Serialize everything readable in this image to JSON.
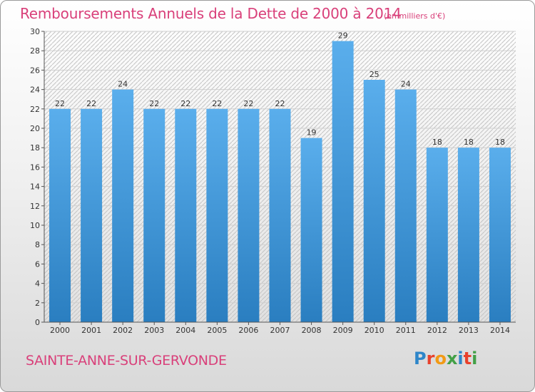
{
  "header": {
    "title": "Remboursements Annuels de la Dette de 2000 à 2014",
    "subtitle": "(en milliers d'€)"
  },
  "footer": {
    "commune": "SAINTE-ANNE-SUR-GERVONDE",
    "logo_letters": [
      "P",
      "r",
      "o",
      "x",
      "i",
      "t",
      "i"
    ],
    "logo_colors": [
      "#2e86c9",
      "#e8412c",
      "#f29a16",
      "#43a047",
      "#2e86c9",
      "#e8412c",
      "#43a047"
    ]
  },
  "colors": {
    "accent": "#d9407a",
    "bar_top": "#5aaeec",
    "bar_bottom": "#2a7ec0",
    "grid": "#cfcfcf"
  },
  "chart_data": {
    "type": "bar",
    "title": "Remboursements Annuels de la Dette de 2000 à 2014",
    "ylabel": "en milliers d'€",
    "xlabel": "",
    "categories": [
      "2000",
      "2001",
      "2002",
      "2003",
      "2004",
      "2005",
      "2006",
      "2007",
      "2008",
      "2009",
      "2010",
      "2011",
      "2012",
      "2013",
      "2014"
    ],
    "values": [
      22,
      22,
      24,
      22,
      22,
      22,
      22,
      22,
      19,
      29,
      25,
      24,
      18,
      18,
      18
    ],
    "ylim": [
      0,
      30
    ],
    "yticks": [
      0,
      2,
      4,
      6,
      8,
      10,
      12,
      14,
      16,
      18,
      20,
      22,
      24,
      26,
      28,
      30
    ],
    "grid": true
  }
}
